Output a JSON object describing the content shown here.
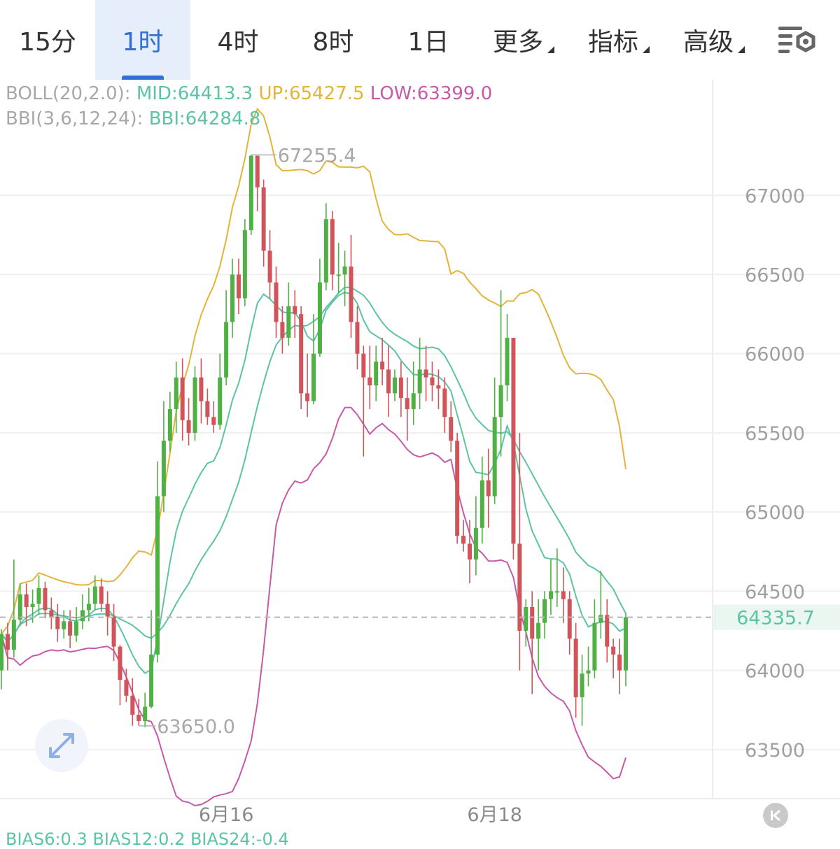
{
  "tabs": {
    "items": [
      {
        "label": "15分",
        "active": false,
        "dropdown": false
      },
      {
        "label": "1时",
        "active": true,
        "dropdown": false
      },
      {
        "label": "4时",
        "active": false,
        "dropdown": false
      },
      {
        "label": "8时",
        "active": false,
        "dropdown": false
      },
      {
        "label": "1日",
        "active": false,
        "dropdown": false
      },
      {
        "label": "更多",
        "active": false,
        "dropdown": true
      },
      {
        "label": "指标",
        "active": false,
        "dropdown": true
      },
      {
        "label": "高级",
        "active": false,
        "dropdown": true
      }
    ],
    "settings_icon": "chart-settings-icon"
  },
  "legend": {
    "boll_label": "BOLL(20,2.0):",
    "mid": "MID:64413.3",
    "up": "UP:65427.5",
    "low": "LOW:63399.0",
    "bbi_label": "BBI(3,6,12,24):",
    "bbi": "BBI:64284.8"
  },
  "bias_row": {
    "text": "BIAS6:0.3  BIAS12:0.2  BIAS24:-0.4"
  },
  "colors": {
    "up_candle": "#4fb043",
    "down_candle": "#d1545a",
    "boll_up": "#e2b43a",
    "boll_mid": "#5cc4a5",
    "boll_low": "#c75aa8",
    "bbi": "#5cc4a5",
    "accent": "#2f6fd6"
  },
  "chart_data": {
    "type": "candlestick",
    "interval": "1时",
    "y_ticks": [
      67000,
      66500,
      66000,
      65500,
      65000,
      64500,
      64000,
      63500
    ],
    "ylim": [
      63190,
      67730
    ],
    "x_labels": [
      {
        "label": "6月16",
        "index": 36
      },
      {
        "label": "6月18",
        "index": 79
      }
    ],
    "grid": true,
    "current_price": 64335.7,
    "high_marker": {
      "label": "67255.4",
      "index": 40,
      "value": 67255.4
    },
    "low_marker": {
      "label": "63650.0",
      "index": 22,
      "value": 63650.0
    },
    "candles": [
      [
        64000,
        64230,
        63880,
        64260
      ],
      [
        64230,
        64130,
        64000,
        64300
      ],
      [
        64130,
        64320,
        64080,
        64700
      ],
      [
        64320,
        64480,
        64280,
        64550
      ],
      [
        64480,
        64400,
        64280,
        64550
      ],
      [
        64400,
        64420,
        64300,
        64510
      ],
      [
        64420,
        64520,
        64350,
        64600
      ],
      [
        64520,
        64380,
        64330,
        64560
      ],
      [
        64380,
        64340,
        64260,
        64460
      ],
      [
        64340,
        64260,
        64180,
        64420
      ],
      [
        64260,
        64310,
        64200,
        64380
      ],
      [
        64310,
        64220,
        64140,
        64380
      ],
      [
        64220,
        64310,
        64180,
        64400
      ],
      [
        64310,
        64380,
        64260,
        64480
      ],
      [
        64380,
        64420,
        64310,
        64520
      ],
      [
        64420,
        64530,
        64380,
        64600
      ],
      [
        64530,
        64420,
        64370,
        64580
      ],
      [
        64420,
        64340,
        64220,
        64500
      ],
      [
        64340,
        64150,
        64060,
        64420
      ],
      [
        64150,
        63940,
        63780,
        64160
      ],
      [
        63940,
        63840,
        63800,
        64010
      ],
      [
        63840,
        63720,
        63650,
        63950
      ],
      [
        63720,
        63680,
        63650,
        63820
      ],
      [
        63680,
        63770,
        63640,
        63860
      ],
      [
        63770,
        64100,
        63760,
        64380
      ],
      [
        64100,
        65100,
        64050,
        65320
      ],
      [
        65100,
        65450,
        65000,
        65700
      ],
      [
        65450,
        65650,
        65380,
        65760
      ],
      [
        65650,
        65850,
        65500,
        65950
      ],
      [
        65850,
        65580,
        65450,
        65970
      ],
      [
        65580,
        65500,
        65420,
        65720
      ],
      [
        65500,
        65850,
        65450,
        65920
      ],
      [
        65850,
        65700,
        65560,
        65970
      ],
      [
        65700,
        65600,
        65550,
        65780
      ],
      [
        65600,
        65550,
        65500,
        65700
      ],
      [
        65550,
        65850,
        65520,
        66000
      ],
      [
        65850,
        66200,
        65800,
        66400
      ],
      [
        66200,
        66500,
        66100,
        66600
      ],
      [
        66500,
        66350,
        66250,
        66600
      ],
      [
        66350,
        66780,
        66300,
        66850
      ],
      [
        66780,
        67250,
        66750,
        67255
      ],
      [
        67250,
        67050,
        66900,
        67250
      ],
      [
        67050,
        66650,
        66550,
        67100
      ],
      [
        66650,
        66450,
        66350,
        66780
      ],
      [
        66450,
        66200,
        66100,
        66550
      ],
      [
        66200,
        66100,
        66000,
        66300
      ],
      [
        66100,
        66300,
        66050,
        66450
      ],
      [
        66300,
        66250,
        66100,
        66400
      ],
      [
        66250,
        65750,
        65650,
        66300
      ],
      [
        65750,
        65700,
        65600,
        66000
      ],
      [
        65700,
        66000,
        65680,
        66250
      ],
      [
        66000,
        66450,
        65980,
        66600
      ],
      [
        66450,
        66850,
        66400,
        66950
      ],
      [
        66850,
        66500,
        66400,
        66900
      ],
      [
        66500,
        66500,
        66380,
        66700
      ],
      [
        66500,
        66550,
        66300,
        66650
      ],
      [
        66550,
        66200,
        66100,
        66750
      ],
      [
        66200,
        66000,
        65900,
        66300
      ],
      [
        66000,
        65850,
        65350,
        66050
      ],
      [
        65850,
        65800,
        65650,
        66050
      ],
      [
        65800,
        65950,
        65700,
        66050
      ],
      [
        65950,
        65900,
        65800,
        66100
      ],
      [
        65900,
        65750,
        65600,
        66050
      ],
      [
        65750,
        65850,
        65700,
        65900
      ],
      [
        65850,
        65720,
        65600,
        65950
      ],
      [
        65720,
        65650,
        65450,
        65850
      ],
      [
        65650,
        65750,
        65550,
        65950
      ],
      [
        65750,
        65900,
        65650,
        66100
      ],
      [
        65900,
        65850,
        65700,
        66050
      ],
      [
        65850,
        65800,
        65700,
        65950
      ],
      [
        65800,
        65780,
        65650,
        65900
      ],
      [
        65780,
        65600,
        65500,
        65850
      ],
      [
        65600,
        65450,
        65380,
        65700
      ],
      [
        65450,
        64850,
        64800,
        65500
      ],
      [
        64850,
        64800,
        64750,
        64950
      ],
      [
        64800,
        64700,
        64550,
        64950
      ],
      [
        64700,
        64900,
        64600,
        65100
      ],
      [
        64900,
        65200,
        64800,
        65350
      ],
      [
        65200,
        65100,
        64900,
        65400
      ],
      [
        65100,
        65600,
        65050,
        65850
      ],
      [
        65600,
        65800,
        65350,
        66400
      ],
      [
        65800,
        66100,
        65700,
        66250
      ],
      [
        66100,
        64800,
        64700,
        66100
      ],
      [
        64800,
        64250,
        64000,
        65500
      ],
      [
        64250,
        64400,
        64150,
        64450
      ],
      [
        64400,
        64200,
        63850,
        64500
      ],
      [
        64200,
        64300,
        64000,
        64450
      ],
      [
        64300,
        64450,
        64200,
        64500
      ],
      [
        64450,
        64500,
        64350,
        64700
      ],
      [
        64500,
        64500,
        64400,
        64770
      ],
      [
        64500,
        64450,
        64300,
        64650
      ],
      [
        64450,
        64200,
        64100,
        64500
      ],
      [
        64200,
        63830,
        63700,
        64300
      ],
      [
        63830,
        63980,
        63650,
        64100
      ],
      [
        63980,
        64000,
        63900,
        64150
      ],
      [
        64000,
        64300,
        63950,
        64450
      ],
      [
        64300,
        64350,
        64200,
        64630
      ],
      [
        64350,
        64150,
        64050,
        64450
      ],
      [
        64150,
        64100,
        63950,
        64200
      ],
      [
        64100,
        64000,
        63850,
        64200
      ],
      [
        64000,
        64335.7,
        63900,
        64360
      ]
    ]
  }
}
